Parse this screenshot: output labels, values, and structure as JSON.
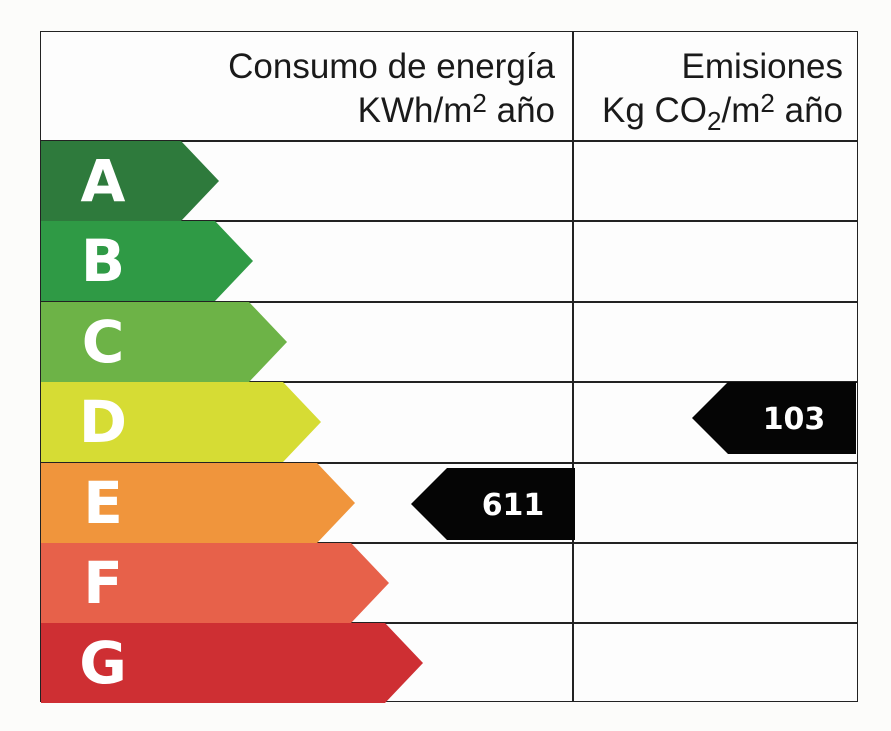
{
  "headers": {
    "consumption": {
      "line1": "Consumo de energía",
      "line2_prefix": "KWh/m",
      "line2_sup": "2",
      "line2_suffix": " año"
    },
    "emissions": {
      "line1": "Emisiones",
      "line2_a": "Kg CO",
      "line2_sub": "2",
      "line2_b": "/m",
      "line2_sup": "2",
      "line2_c": " año"
    }
  },
  "chart_data": {
    "type": "table",
    "ratings": [
      {
        "letter": "A",
        "color": "#2e7a3c"
      },
      {
        "letter": "B",
        "color": "#2f9a45"
      },
      {
        "letter": "C",
        "color": "#6db347"
      },
      {
        "letter": "D",
        "color": "#d6dc34"
      },
      {
        "letter": "E",
        "color": "#f0953c"
      },
      {
        "letter": "F",
        "color": "#e7614a"
      },
      {
        "letter": "G",
        "color": "#ce2f33"
      }
    ],
    "consumption": {
      "value": "611",
      "rating": "E"
    },
    "emissions": {
      "value": "103",
      "rating": "D"
    },
    "indicator_color": "#050505"
  }
}
